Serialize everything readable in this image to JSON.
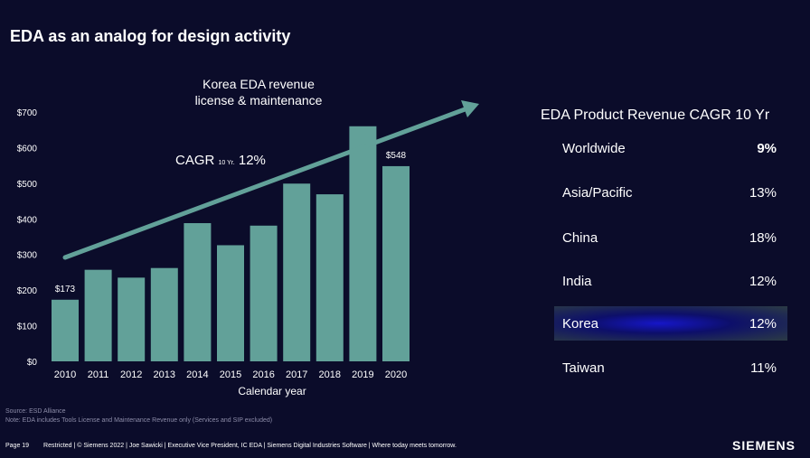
{
  "slide": {
    "title": "EDA as an analog for design activity",
    "source": "Source:  ESD Alliance",
    "note": "Note: EDA includes Tools License and Maintenance Revenue only (Services and SIP excluded)",
    "page": "Page 19",
    "footer": "Restricted | © Siemens 2022 | Joe Sawicki | Executive Vice President, IC EDA | Siemens Digital Industries Software | Where today meets tomorrow.",
    "logo": "SIEMENS"
  },
  "chart_data": {
    "type": "bar",
    "title": "",
    "xlabel": "Calendar year",
    "ylabel": "",
    "categories": [
      "2010",
      "2011",
      "2012",
      "2013",
      "2014",
      "2015",
      "2016",
      "2017",
      "2018",
      "2019",
      "2020"
    ],
    "values": [
      173,
      257,
      235,
      262,
      388,
      326,
      381,
      499,
      469,
      660,
      548
    ],
    "data_labels": {
      "0": "$173",
      "10": "$548"
    },
    "ylim": [
      0,
      700
    ],
    "yticks": [
      "$0",
      "$100",
      "$200",
      "$300",
      "$400",
      "$500",
      "$600",
      "$700"
    ],
    "grid": false,
    "bar_color": "#62a199",
    "trend_annotation": {
      "text_line1": "Korea EDA revenue",
      "text_line2": "license & maintenance",
      "cagr_prefix": "CAGR",
      "cagr_sub": "10 Yr.",
      "cagr_value": "12%"
    }
  },
  "cagr_table": {
    "heading": "EDA Product Revenue CAGR 10 Yr",
    "rows": [
      {
        "region": "Worldwide",
        "value": "9%"
      },
      {
        "region": "Asia/Pacific",
        "value": "13%"
      },
      {
        "region": "China",
        "value": "18%"
      },
      {
        "region": "India",
        "value": "12%"
      },
      {
        "region": "Korea",
        "value": "12%"
      },
      {
        "region": "Taiwan",
        "value": "11%"
      }
    ],
    "highlight_region": "Korea"
  },
  "colors": {
    "background": "#0b0c2a",
    "bar": "#62a199",
    "arrow": "#62a199",
    "highlight": "#1616c8"
  }
}
